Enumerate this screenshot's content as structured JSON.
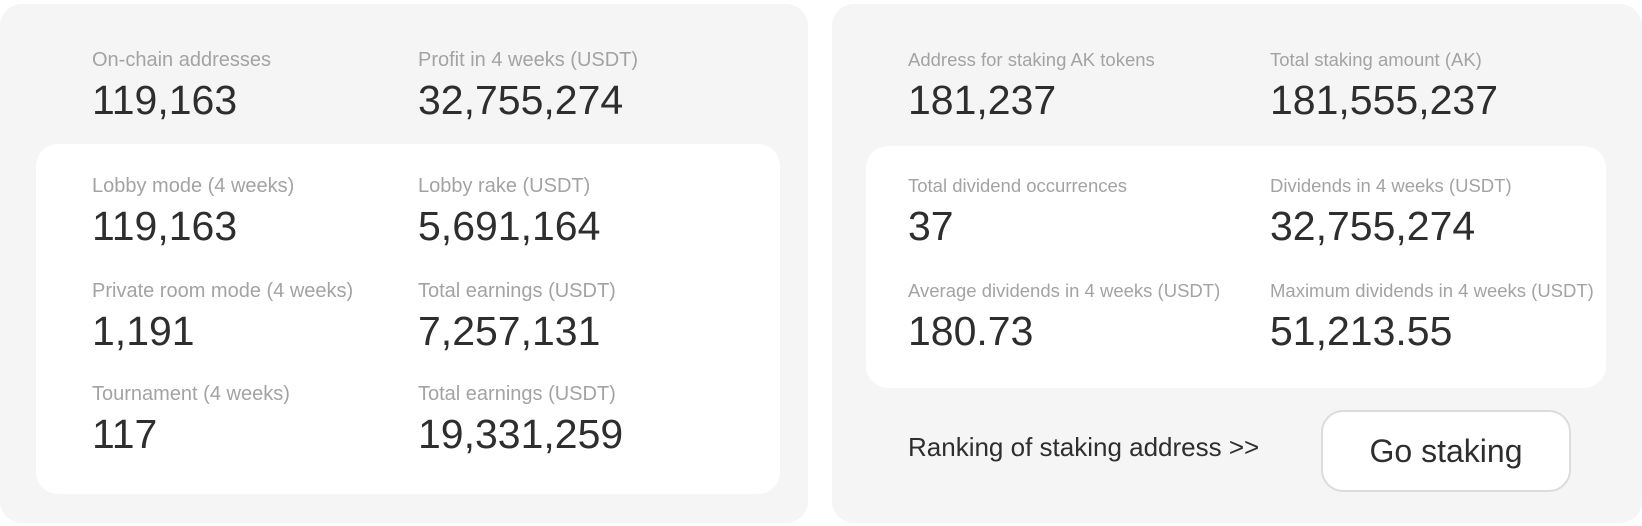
{
  "platform_stats": {
    "onchain_addresses": {
      "label": "On-chain addresses",
      "value": "119,163"
    },
    "profit_4w": {
      "label": "Profit in 4 weeks (USDT)",
      "value": "32,755,274"
    },
    "lobby_mode": {
      "label": "Lobby mode (4 weeks)",
      "value": "119,163"
    },
    "lobby_rake": {
      "label": "Lobby rake (USDT)",
      "value": "5,691,164"
    },
    "private_room_mode": {
      "label": "Private room mode (4 weeks)",
      "value": "1,191"
    },
    "private_room_earnings": {
      "label": "Total earnings (USDT)",
      "value": "7,257,131"
    },
    "tournament": {
      "label": "Tournament (4 weeks)",
      "value": "117"
    },
    "tournament_earnings": {
      "label": "Total earnings (USDT)",
      "value": "19,331,259"
    }
  },
  "staking_stats": {
    "staking_addresses": {
      "label": "Address for staking AK tokens",
      "value": "181,237"
    },
    "total_staking_amount": {
      "label": "Total staking amount (AK)",
      "value": "181,555,237"
    },
    "dividend_occurrences": {
      "label": "Total dividend occurrences",
      "value": "37"
    },
    "dividends_4w": {
      "label": "Dividends in 4 weeks (USDT)",
      "value": "32,755,274"
    },
    "average_dividends_4w": {
      "label": "Average dividends in 4 weeks (USDT)",
      "value": "180.73"
    },
    "maximum_dividends_4w": {
      "label": "Maximum dividends in 4 weeks (USDT)",
      "value": "51,213.55"
    }
  },
  "actions": {
    "ranking_link_label": "Ranking of staking address >>",
    "go_staking_label": "Go staking"
  }
}
